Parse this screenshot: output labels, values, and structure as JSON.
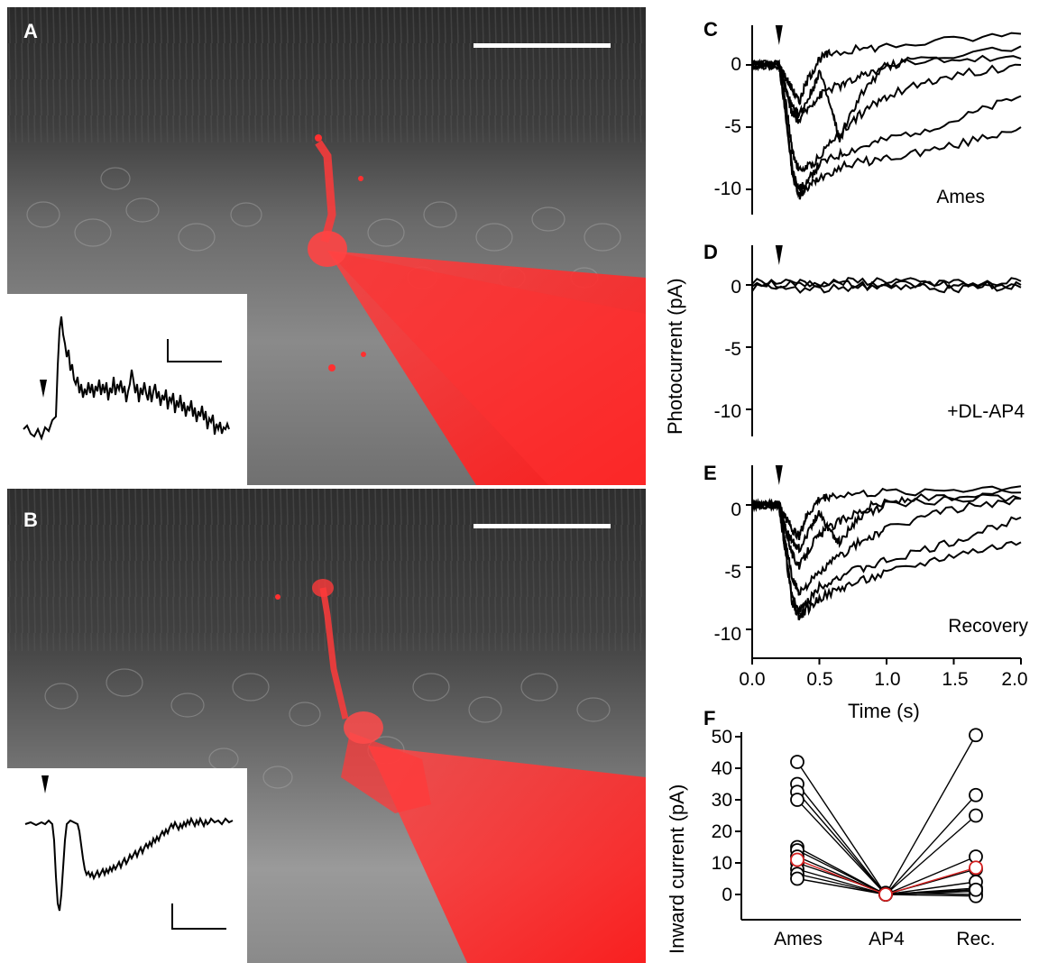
{
  "panels": {
    "a": "A",
    "b": "B",
    "c": "C",
    "d": "D",
    "e": "E",
    "f": "F"
  },
  "traces": {
    "y_ticks": [
      "0",
      "-5",
      "-10"
    ],
    "x_ticks": [
      "0.0",
      "0.5",
      "1.0",
      "1.5",
      "2.0"
    ],
    "y_label": "Photocurrent (pA)",
    "x_label": "Time (s)",
    "conditions": {
      "c": "Ames",
      "d": "+DL-AP4",
      "e": "Recovery"
    }
  },
  "summary": {
    "y_label": "Inward current (pA)",
    "y_ticks": [
      "50",
      "40",
      "30",
      "20",
      "10",
      "0"
    ],
    "categories": [
      "Ames",
      "AP4",
      "Rec."
    ]
  },
  "colors": {
    "dye": "#ff2a2a",
    "highlight": "#d42020",
    "trace": "#000000"
  },
  "chart_data": [
    {
      "type": "line",
      "panel": "C",
      "xlabel": "Time (s)",
      "ylabel": "Photocurrent (pA)",
      "xlim": [
        0,
        2.0
      ],
      "ylim": [
        -12,
        3
      ],
      "stimulus_time": 0.2,
      "annotation": "Ames",
      "series": [
        {
          "x": [
            0,
            0.2,
            0.25,
            0.3,
            0.35,
            0.4,
            0.5,
            0.7,
            1.0,
            1.5,
            2.0
          ],
          "y": [
            0,
            0,
            -4,
            -9,
            -10.5,
            -10,
            -9,
            -8,
            -7.5,
            -6.5,
            -5
          ]
        },
        {
          "x": [
            0,
            0.2,
            0.25,
            0.3,
            0.35,
            0.4,
            0.5,
            0.7,
            1.0,
            1.5,
            2.0
          ],
          "y": [
            0,
            0,
            -4,
            -8.5,
            -10,
            -9.5,
            -8,
            -7,
            -6,
            -4.5,
            -2.5
          ]
        },
        {
          "x": [
            0,
            0.2,
            0.25,
            0.3,
            0.35,
            0.45,
            0.6,
            0.8,
            1.0,
            1.4,
            2.0
          ],
          "y": [
            0,
            0,
            -3,
            -7,
            -8.5,
            -8,
            -6,
            -4,
            -2.5,
            -1,
            0
          ]
        },
        {
          "x": [
            0,
            0.2,
            0.25,
            0.3,
            0.35,
            0.45,
            0.55,
            0.7,
            0.9,
            1.2,
            2.0
          ],
          "y": [
            0,
            0,
            -2,
            -4,
            -4.5,
            -3,
            -2,
            -1.5,
            -0.5,
            0.5,
            0.5
          ]
        },
        {
          "x": [
            0,
            0.2,
            0.25,
            0.3,
            0.35,
            0.45,
            0.5,
            0.6,
            0.65,
            0.8,
            1.0,
            2.0
          ],
          "y": [
            0,
            0,
            -2,
            -3.5,
            -4,
            -2,
            -0.5,
            -4,
            -6,
            -2.5,
            0,
            1.5
          ]
        },
        {
          "x": [
            0,
            0.2,
            0.25,
            0.3,
            0.35,
            0.4,
            0.5,
            0.6,
            1.0,
            2.0
          ],
          "y": [
            0,
            0,
            -1,
            -2,
            -3,
            -1.5,
            0.5,
            1,
            1.5,
            2.5
          ]
        }
      ]
    },
    {
      "type": "line",
      "panel": "D",
      "xlabel": "Time (s)",
      "ylabel": "Photocurrent (pA)",
      "xlim": [
        0,
        2.0
      ],
      "ylim": [
        -12,
        3
      ],
      "stimulus_time": 0.2,
      "annotation": "+DL-AP4",
      "series": [
        {
          "x": [
            0,
            0.5,
            1.0,
            1.5,
            2.0
          ],
          "y": [
            0,
            0.2,
            -0.2,
            0.1,
            0
          ]
        },
        {
          "x": [
            0,
            0.5,
            1.0,
            1.5,
            2.0
          ],
          "y": [
            0.3,
            0.1,
            0.4,
            -0.1,
            0.3
          ]
        },
        {
          "x": [
            0,
            0.5,
            1.0,
            1.5,
            2.0
          ],
          "y": [
            -0.2,
            -0.4,
            0.1,
            -0.3,
            -0.2
          ]
        }
      ]
    },
    {
      "type": "line",
      "panel": "E",
      "xlabel": "Time (s)",
      "ylabel": "Photocurrent (pA)",
      "xlim": [
        0,
        2.0
      ],
      "ylim": [
        -12,
        3
      ],
      "stimulus_time": 0.2,
      "annotation": "Recovery",
      "series": [
        {
          "x": [
            0,
            0.2,
            0.25,
            0.3,
            0.35,
            0.4,
            0.5,
            0.7,
            1.0,
            1.5,
            2.0
          ],
          "y": [
            0,
            0,
            -4,
            -8,
            -9,
            -8.5,
            -7.5,
            -6.5,
            -5.5,
            -4,
            -3
          ]
        },
        {
          "x": [
            0,
            0.2,
            0.25,
            0.3,
            0.35,
            0.4,
            0.5,
            0.7,
            1.0,
            1.5,
            2.0
          ],
          "y": [
            0,
            0,
            -4,
            -7.5,
            -8.5,
            -8,
            -6.5,
            -5.5,
            -4.5,
            -3,
            -1
          ]
        },
        {
          "x": [
            0,
            0.2,
            0.25,
            0.3,
            0.35,
            0.45,
            0.6,
            0.8,
            1.0,
            1.4,
            2.0
          ],
          "y": [
            0,
            0,
            -3,
            -6,
            -7,
            -6,
            -4.5,
            -3,
            -2,
            -0.5,
            0.5
          ]
        },
        {
          "x": [
            0,
            0.2,
            0.25,
            0.3,
            0.35,
            0.45,
            0.55,
            0.7,
            0.9,
            1.2,
            2.0
          ],
          "y": [
            0,
            0,
            -2,
            -4,
            -5,
            -3,
            -2,
            -1,
            0,
            0.5,
            0.5
          ]
        },
        {
          "x": [
            0,
            0.2,
            0.25,
            0.3,
            0.35,
            0.45,
            0.5,
            0.6,
            0.65,
            0.8,
            1.0,
            2.0
          ],
          "y": [
            0,
            0,
            -2,
            -3,
            -3.5,
            -1.5,
            -0.5,
            -2.5,
            -3,
            -1,
            0,
            1
          ]
        },
        {
          "x": [
            0,
            0.2,
            0.25,
            0.3,
            0.35,
            0.4,
            0.5,
            0.6,
            1.0,
            2.0
          ],
          "y": [
            0,
            0,
            -1,
            -2,
            -2.5,
            -1,
            0.5,
            0.8,
            1,
            1.5
          ]
        }
      ]
    },
    {
      "type": "scatter",
      "panel": "F",
      "ylabel": "Inward current (pA)",
      "categories": [
        "Ames",
        "AP4",
        "Rec."
      ],
      "ylim": [
        -4,
        54
      ],
      "cells": [
        {
          "values": [
            42,
            0,
            50.5
          ]
        },
        {
          "values": [
            35,
            0,
            31.5
          ]
        },
        {
          "values": [
            32.5,
            0,
            25
          ]
        },
        {
          "values": [
            30,
            0,
            8
          ]
        },
        {
          "values": [
            15,
            0,
            12
          ]
        },
        {
          "values": [
            14,
            0,
            2
          ]
        },
        {
          "values": [
            12,
            0,
            1
          ]
        },
        {
          "values": [
            10,
            0.5,
            0
          ]
        },
        {
          "values": [
            8,
            0,
            -0.5
          ]
        },
        {
          "values": [
            6.5,
            0,
            4
          ]
        },
        {
          "values": [
            5,
            0,
            1.5
          ]
        },
        {
          "values": [
            11,
            0,
            8.5
          ],
          "highlight": true
        }
      ]
    }
  ]
}
